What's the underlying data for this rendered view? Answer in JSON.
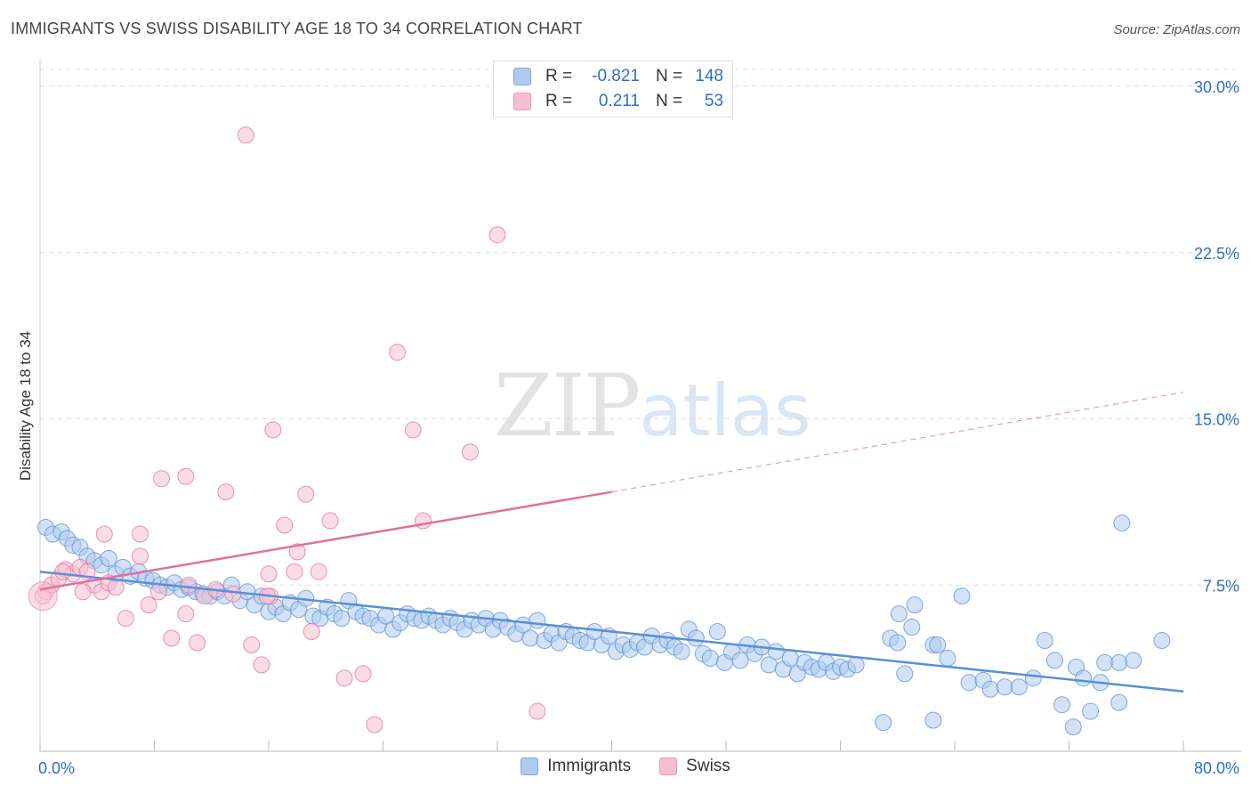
{
  "header": {
    "title": "IMMIGRANTS VS SWISS DISABILITY AGE 18 TO 34 CORRELATION CHART",
    "source": "Source: ZipAtlas.com"
  },
  "watermark": {
    "zip": "ZIP",
    "atlas": "atlas"
  },
  "legend": {
    "rows": [
      {
        "r_label": "R =",
        "r_value": "-0.821",
        "n_label": "N =",
        "n_value": "148",
        "color": "#aecbef"
      },
      {
        "r_label": "R =",
        "r_value": "0.211",
        "n_label": "N =",
        "n_value": "53",
        "color": "#f6bfd0"
      }
    ]
  },
  "bottom_legend": [
    {
      "label": "Immigrants",
      "color": "#aecbef"
    },
    {
      "label": "Swiss",
      "color": "#f6bfd0"
    }
  ],
  "chart_data": {
    "type": "scatter",
    "xlabel": "",
    "ylabel": "Disability Age 18 to 34",
    "xlim": [
      0,
      80
    ],
    "ylim": [
      0,
      30
    ],
    "x_tick_labels": [
      "0.0%",
      "80.0%"
    ],
    "y_tick_labels": [
      "7.5%",
      "15.0%",
      "22.5%",
      "30.0%"
    ],
    "y_ticks": [
      7.5,
      15,
      22.5,
      30
    ],
    "grid": true,
    "legend_position": "top-center",
    "series": [
      {
        "name": "Immigrants",
        "color": "#5a8fd6",
        "fill": "#aecbef",
        "trend": {
          "x0": 0,
          "y0": 8.1,
          "x1": 80,
          "y1": 2.7
        },
        "points": [
          [
            0.4,
            10.1
          ],
          [
            0.9,
            9.8
          ],
          [
            1.5,
            9.9
          ],
          [
            1.9,
            9.6
          ],
          [
            2.3,
            9.3
          ],
          [
            2.8,
            9.2
          ],
          [
            3.3,
            8.8
          ],
          [
            3.8,
            8.6
          ],
          [
            4.3,
            8.4
          ],
          [
            4.8,
            8.7
          ],
          [
            5.3,
            8.0
          ],
          [
            5.8,
            8.3
          ],
          [
            6.3,
            7.9
          ],
          [
            6.9,
            8.1
          ],
          [
            7.4,
            7.8
          ],
          [
            7.9,
            7.7
          ],
          [
            8.4,
            7.5
          ],
          [
            8.9,
            7.4
          ],
          [
            9.4,
            7.6
          ],
          [
            9.9,
            7.3
          ],
          [
            10.4,
            7.4
          ],
          [
            10.9,
            7.2
          ],
          [
            11.4,
            7.1
          ],
          [
            11.9,
            7.0
          ],
          [
            12.4,
            7.2
          ],
          [
            12.9,
            7.0
          ],
          [
            13.4,
            7.5
          ],
          [
            14.0,
            6.8
          ],
          [
            14.5,
            7.2
          ],
          [
            15.0,
            6.6
          ],
          [
            15.5,
            7.0
          ],
          [
            16.0,
            6.3
          ],
          [
            16.5,
            6.5
          ],
          [
            17.0,
            6.2
          ],
          [
            17.5,
            6.7
          ],
          [
            18.1,
            6.4
          ],
          [
            18.6,
            6.9
          ],
          [
            19.1,
            6.1
          ],
          [
            19.6,
            6.0
          ],
          [
            20.1,
            6.5
          ],
          [
            20.6,
            6.2
          ],
          [
            21.1,
            6.0
          ],
          [
            21.6,
            6.8
          ],
          [
            22.1,
            6.3
          ],
          [
            22.6,
            6.1
          ],
          [
            23.1,
            6.0
          ],
          [
            23.7,
            5.7
          ],
          [
            24.2,
            6.1
          ],
          [
            24.7,
            5.5
          ],
          [
            25.2,
            5.8
          ],
          [
            25.7,
            6.2
          ],
          [
            26.2,
            6.0
          ],
          [
            26.7,
            5.9
          ],
          [
            27.2,
            6.1
          ],
          [
            27.7,
            5.9
          ],
          [
            28.2,
            5.7
          ],
          [
            28.7,
            6.0
          ],
          [
            29.2,
            5.8
          ],
          [
            29.7,
            5.5
          ],
          [
            30.2,
            5.9
          ],
          [
            30.7,
            5.7
          ],
          [
            31.2,
            6.0
          ],
          [
            31.7,
            5.5
          ],
          [
            32.2,
            5.9
          ],
          [
            32.7,
            5.6
          ],
          [
            33.3,
            5.3
          ],
          [
            33.8,
            5.7
          ],
          [
            34.3,
            5.1
          ],
          [
            34.8,
            5.9
          ],
          [
            35.3,
            5.0
          ],
          [
            35.8,
            5.3
          ],
          [
            36.3,
            4.9
          ],
          [
            36.8,
            5.4
          ],
          [
            37.3,
            5.2
          ],
          [
            37.8,
            5.0
          ],
          [
            38.3,
            4.9
          ],
          [
            38.8,
            5.4
          ],
          [
            39.3,
            4.8
          ],
          [
            39.8,
            5.2
          ],
          [
            40.3,
            4.5
          ],
          [
            40.8,
            4.8
          ],
          [
            41.3,
            4.6
          ],
          [
            41.8,
            4.9
          ],
          [
            42.3,
            4.7
          ],
          [
            42.8,
            5.2
          ],
          [
            43.4,
            4.8
          ],
          [
            43.9,
            5.0
          ],
          [
            44.4,
            4.7
          ],
          [
            44.9,
            4.5
          ],
          [
            45.4,
            5.5
          ],
          [
            45.9,
            5.1
          ],
          [
            46.4,
            4.4
          ],
          [
            46.9,
            4.2
          ],
          [
            47.4,
            5.4
          ],
          [
            47.9,
            4.0
          ],
          [
            48.4,
            4.5
          ],
          [
            49.0,
            4.1
          ],
          [
            49.5,
            4.8
          ],
          [
            50.0,
            4.4
          ],
          [
            50.5,
            4.7
          ],
          [
            51.0,
            3.9
          ],
          [
            51.5,
            4.5
          ],
          [
            52.0,
            3.7
          ],
          [
            52.5,
            4.2
          ],
          [
            53.0,
            3.5
          ],
          [
            53.5,
            4.0
          ],
          [
            54.0,
            3.8
          ],
          [
            54.5,
            3.7
          ],
          [
            55.0,
            4.0
          ],
          [
            55.5,
            3.6
          ],
          [
            56.0,
            3.8
          ],
          [
            56.5,
            3.7
          ],
          [
            57.1,
            3.9
          ],
          [
            59.5,
            5.1
          ],
          [
            60.0,
            4.9
          ],
          [
            60.5,
            3.5
          ],
          [
            61.0,
            5.6
          ],
          [
            62.5,
            4.8
          ],
          [
            62.8,
            4.8
          ],
          [
            63.5,
            4.2
          ],
          [
            65.0,
            3.1
          ],
          [
            66.0,
            3.2
          ],
          [
            66.5,
            2.8
          ],
          [
            67.5,
            2.9
          ],
          [
            68.5,
            2.9
          ],
          [
            69.5,
            3.3
          ],
          [
            71.0,
            4.1
          ],
          [
            72.5,
            3.8
          ],
          [
            73.0,
            3.3
          ],
          [
            74.5,
            4.0
          ],
          [
            75.5,
            4.0
          ],
          [
            76.5,
            4.1
          ],
          [
            59.0,
            1.3
          ],
          [
            62.5,
            1.4
          ],
          [
            71.5,
            2.1
          ],
          [
            73.5,
            1.8
          ],
          [
            72.3,
            1.1
          ],
          [
            75.5,
            2.2
          ],
          [
            78.5,
            5.0
          ],
          [
            75.7,
            10.3
          ],
          [
            64.5,
            7.0
          ],
          [
            60.1,
            6.2
          ],
          [
            61.2,
            6.6
          ],
          [
            70.3,
            5.0
          ],
          [
            74.2,
            3.1
          ]
        ]
      },
      {
        "name": "Swiss",
        "color": "#e2709a",
        "fill": "#f6bfd0",
        "trend": {
          "x0": 0,
          "y0": 7.3,
          "x1": 40,
          "y1": 11.7,
          "dash_x1": 80,
          "dash_y1": 16.2
        },
        "points": [
          [
            0.4,
            7.2
          ],
          [
            0.8,
            7.5
          ],
          [
            1.3,
            7.8
          ],
          [
            1.8,
            8.2
          ],
          [
            2.3,
            8.0
          ],
          [
            2.8,
            8.3
          ],
          [
            3.3,
            8.1
          ],
          [
            3.8,
            7.5
          ],
          [
            4.3,
            7.2
          ],
          [
            4.8,
            7.6
          ],
          [
            5.3,
            7.4
          ],
          [
            6.0,
            6.0
          ],
          [
            7.0,
            8.8
          ],
          [
            7.6,
            6.6
          ],
          [
            8.3,
            7.2
          ],
          [
            9.2,
            5.1
          ],
          [
            10.2,
            6.2
          ],
          [
            10.4,
            7.5
          ],
          [
            11.5,
            7.0
          ],
          [
            12.3,
            7.3
          ],
          [
            13.5,
            7.1
          ],
          [
            15.5,
            3.9
          ],
          [
            16.1,
            7.0
          ],
          [
            17.1,
            10.2
          ],
          [
            17.8,
            8.1
          ],
          [
            18.6,
            11.6
          ],
          [
            19.5,
            8.1
          ],
          [
            20.3,
            10.4
          ],
          [
            21.3,
            3.3
          ],
          [
            22.6,
            3.5
          ],
          [
            23.4,
            1.2
          ],
          [
            25.0,
            18.0
          ],
          [
            26.1,
            14.5
          ],
          [
            26.8,
            10.4
          ],
          [
            30.1,
            13.5
          ],
          [
            32.0,
            23.3
          ],
          [
            34.8,
            1.8
          ],
          [
            16.3,
            14.5
          ],
          [
            15.9,
            7.0
          ],
          [
            13.0,
            11.7
          ],
          [
            14.8,
            4.8
          ],
          [
            10.2,
            12.4
          ],
          [
            11.0,
            4.9
          ],
          [
            8.5,
            12.3
          ],
          [
            7.0,
            9.8
          ],
          [
            4.5,
            9.8
          ],
          [
            3.0,
            7.2
          ],
          [
            18.0,
            9.0
          ],
          [
            19.0,
            5.4
          ],
          [
            16.0,
            8.0
          ],
          [
            14.4,
            27.8
          ],
          [
            1.6,
            8.1
          ],
          [
            0.2,
            7.0
          ]
        ]
      }
    ]
  }
}
